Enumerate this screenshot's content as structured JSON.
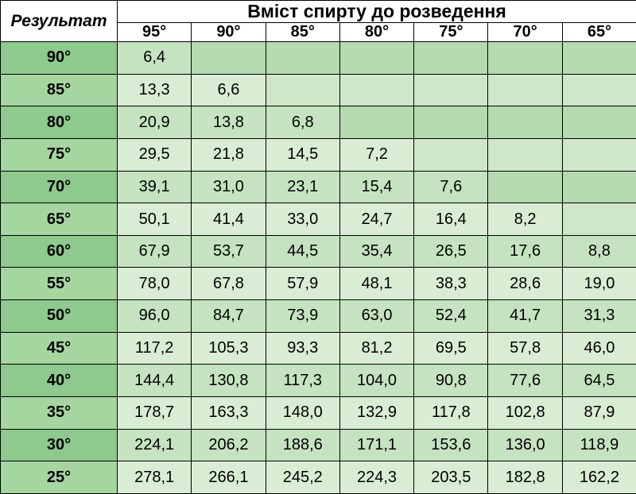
{
  "table": {
    "corner_label": "Результат",
    "top_header": "Вміст спирту до розведення",
    "columns": [
      "95°",
      "90°",
      "85°",
      "80°",
      "75°",
      "70°",
      "65°"
    ],
    "rows": [
      {
        "label": "90°",
        "cells": [
          "6,4",
          "",
          "",
          "",
          "",
          "",
          ""
        ]
      },
      {
        "label": "85°",
        "cells": [
          "13,3",
          "6,6",
          "",
          "",
          "",
          "",
          ""
        ]
      },
      {
        "label": "80°",
        "cells": [
          "20,9",
          "13,8",
          "6,8",
          "",
          "",
          "",
          ""
        ]
      },
      {
        "label": "75°",
        "cells": [
          "29,5",
          "21,8",
          "14,5",
          "7,2",
          "",
          "",
          ""
        ]
      },
      {
        "label": "70°",
        "cells": [
          "39,1",
          "31,0",
          "23,1",
          "15,4",
          "7,6",
          "",
          ""
        ]
      },
      {
        "label": "65°",
        "cells": [
          "50,1",
          "41,4",
          "33,0",
          "24,7",
          "16,4",
          "8,2",
          ""
        ]
      },
      {
        "label": "60°",
        "cells": [
          "67,9",
          "53,7",
          "44,5",
          "35,4",
          "26,5",
          "17,6",
          "8,8"
        ]
      },
      {
        "label": "55°",
        "cells": [
          "78,0",
          "67,8",
          "57,9",
          "48,1",
          "38,3",
          "28,6",
          "19,0"
        ]
      },
      {
        "label": "50°",
        "cells": [
          "96,0",
          "84,7",
          "73,9",
          "63,0",
          "52,4",
          "41,7",
          "31,3"
        ]
      },
      {
        "label": "45°",
        "cells": [
          "117,2",
          "105,3",
          "93,3",
          "81,2",
          "69,5",
          "57,8",
          "46,0"
        ]
      },
      {
        "label": "40°",
        "cells": [
          "144,4",
          "130,8",
          "117,3",
          "104,0",
          "90,8",
          "77,6",
          "64,5"
        ]
      },
      {
        "label": "35°",
        "cells": [
          "178,7",
          "163,3",
          "148,0",
          "132,9",
          "117,8",
          "102,8",
          "87,9"
        ]
      },
      {
        "label": "30°",
        "cells": [
          "224,1",
          "206,2",
          "188,6",
          "171,1",
          "153,6",
          "136,0",
          "118,9"
        ]
      },
      {
        "label": "25°",
        "cells": [
          "278,1",
          "266,1",
          "245,2",
          "224,3",
          "203,5",
          "182,8",
          "162,2"
        ]
      }
    ],
    "colors": {
      "row_dark_header": "#8ec98e",
      "row_dark_filled": "#c5e3c0",
      "row_dark_empty": "#b5dab0",
      "row_light_header": "#a5d6a0",
      "row_light_filled": "#d9edd4",
      "row_light_empty": "#cee7c8",
      "border": "#000000",
      "header_bg": "#ffffff"
    },
    "font": {
      "family": "Arial",
      "header_size_pt": 17,
      "body_size_pt": 15
    }
  }
}
